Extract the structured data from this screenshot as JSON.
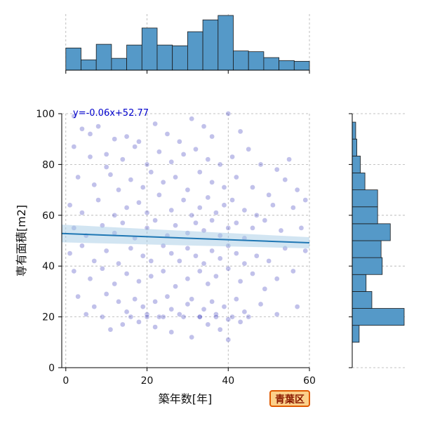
{
  "badge": {
    "label": "青葉区"
  },
  "colors": {
    "bar": "#5599c8",
    "point": "#3333bb",
    "regression": "#1f77b4",
    "band": "#a6cbe6",
    "equation": "#0000cc"
  },
  "chart_data": {
    "type": "scatter",
    "xlabel": "築年数[年]",
    "ylabel": "専有面積[m2]",
    "xlim": [
      -1,
      60
    ],
    "ylim": [
      0,
      100
    ],
    "x_ticks": [
      0,
      20,
      40,
      60
    ],
    "y_ticks": [
      0,
      20,
      40,
      60,
      80,
      100
    ],
    "grid": true,
    "regression": {
      "equation": "y=-0.06x+52.77",
      "slope": -0.06,
      "intercept": 52.77
    },
    "x_histogram": {
      "bin_edges": [
        0,
        3.75,
        7.5,
        11.25,
        15,
        18.75,
        22.5,
        26.25,
        30,
        33.75,
        37.5,
        41.25,
        45,
        48.75,
        52.5,
        56.25,
        60
      ],
      "counts": [
        30,
        14,
        35,
        16,
        34,
        57,
        34,
        33,
        52,
        68,
        74,
        26,
        25,
        17,
        13,
        12
      ]
    },
    "y_histogram": {
      "bin_edges": [
        10,
        16.67,
        23.33,
        30,
        36.67,
        43.33,
        50,
        56.67,
        63.33,
        70,
        76.67,
        83.33,
        90,
        96.67,
        100
      ],
      "counts": [
        6,
        45,
        17,
        12,
        26,
        25,
        33,
        22,
        22,
        11,
        7,
        4,
        3,
        0
      ]
    },
    "points": [
      [
        2,
        99
      ],
      [
        4,
        94
      ],
      [
        6,
        92
      ],
      [
        8,
        95
      ],
      [
        10,
        84
      ],
      [
        12,
        90
      ],
      [
        15,
        91
      ],
      [
        18,
        89
      ],
      [
        22,
        96
      ],
      [
        25,
        92
      ],
      [
        28,
        89
      ],
      [
        31,
        98
      ],
      [
        34,
        95
      ],
      [
        36,
        91
      ],
      [
        40,
        100
      ],
      [
        43,
        93
      ],
      [
        2,
        87
      ],
      [
        6,
        83
      ],
      [
        10,
        79
      ],
      [
        14,
        82
      ],
      [
        17,
        87
      ],
      [
        20,
        80
      ],
      [
        23,
        85
      ],
      [
        26,
        81
      ],
      [
        29,
        84
      ],
      [
        32,
        86
      ],
      [
        35,
        82
      ],
      [
        38,
        80
      ],
      [
        41,
        83
      ],
      [
        45,
        86
      ],
      [
        48,
        80
      ],
      [
        52,
        78
      ],
      [
        55,
        82
      ],
      [
        3,
        75
      ],
      [
        7,
        72
      ],
      [
        11,
        76
      ],
      [
        13,
        70
      ],
      [
        16,
        74
      ],
      [
        19,
        71
      ],
      [
        21,
        77
      ],
      [
        24,
        73
      ],
      [
        27,
        75
      ],
      [
        30,
        70
      ],
      [
        33,
        77
      ],
      [
        36,
        73
      ],
      [
        39,
        71
      ],
      [
        42,
        75
      ],
      [
        46,
        71
      ],
      [
        50,
        68
      ],
      [
        54,
        74
      ],
      [
        57,
        70
      ],
      [
        1,
        64
      ],
      [
        4,
        61
      ],
      [
        8,
        66
      ],
      [
        12,
        60
      ],
      [
        15,
        63
      ],
      [
        18,
        65
      ],
      [
        20,
        61
      ],
      [
        23,
        68
      ],
      [
        26,
        62
      ],
      [
        29,
        66
      ],
      [
        31,
        60
      ],
      [
        33,
        63
      ],
      [
        35,
        67
      ],
      [
        37,
        61
      ],
      [
        39,
        64
      ],
      [
        41,
        66
      ],
      [
        44,
        62
      ],
      [
        47,
        60
      ],
      [
        51,
        64
      ],
      [
        56,
        63
      ],
      [
        59,
        66
      ],
      [
        2,
        55
      ],
      [
        5,
        52
      ],
      [
        9,
        56
      ],
      [
        12,
        53
      ],
      [
        14,
        57
      ],
      [
        17,
        51
      ],
      [
        20,
        55
      ],
      [
        22,
        58
      ],
      [
        25,
        52
      ],
      [
        27,
        56
      ],
      [
        30,
        53
      ],
      [
        32,
        57
      ],
      [
        34,
        54
      ],
      [
        36,
        58
      ],
      [
        38,
        52
      ],
      [
        40,
        55
      ],
      [
        42,
        57
      ],
      [
        44,
        51
      ],
      [
        46,
        55
      ],
      [
        49,
        58
      ],
      [
        53,
        54
      ],
      [
        58,
        55
      ],
      [
        1,
        45
      ],
      [
        4,
        48
      ],
      [
        7,
        42
      ],
      [
        10,
        46
      ],
      [
        13,
        41
      ],
      [
        16,
        47
      ],
      [
        19,
        44
      ],
      [
        21,
        42
      ],
      [
        24,
        48
      ],
      [
        26,
        45
      ],
      [
        28,
        42
      ],
      [
        30,
        47
      ],
      [
        32,
        44
      ],
      [
        34,
        41
      ],
      [
        36,
        46
      ],
      [
        38,
        43
      ],
      [
        40,
        48
      ],
      [
        42,
        45
      ],
      [
        44,
        41
      ],
      [
        47,
        44
      ],
      [
        50,
        42
      ],
      [
        54,
        47
      ],
      [
        59,
        46
      ],
      [
        2,
        38
      ],
      [
        6,
        35
      ],
      [
        9,
        39
      ],
      [
        12,
        33
      ],
      [
        15,
        37
      ],
      [
        18,
        34
      ],
      [
        21,
        36
      ],
      [
        24,
        38
      ],
      [
        27,
        32
      ],
      [
        30,
        35
      ],
      [
        33,
        38
      ],
      [
        35,
        33
      ],
      [
        37,
        36
      ],
      [
        40,
        39
      ],
      [
        43,
        34
      ],
      [
        46,
        37
      ],
      [
        49,
        31
      ],
      [
        52,
        35
      ],
      [
        56,
        38
      ],
      [
        3,
        28
      ],
      [
        7,
        24
      ],
      [
        10,
        29
      ],
      [
        13,
        26
      ],
      [
        15,
        22
      ],
      [
        17,
        27
      ],
      [
        19,
        24
      ],
      [
        20,
        21
      ],
      [
        22,
        26
      ],
      [
        23,
        20
      ],
      [
        25,
        28
      ],
      [
        26,
        23
      ],
      [
        28,
        21
      ],
      [
        30,
        25
      ],
      [
        31,
        27
      ],
      [
        33,
        20
      ],
      [
        34,
        23
      ],
      [
        36,
        26
      ],
      [
        37,
        21
      ],
      [
        39,
        24
      ],
      [
        40,
        19
      ],
      [
        42,
        27
      ],
      [
        44,
        22
      ],
      [
        48,
        25
      ],
      [
        52,
        21
      ],
      [
        57,
        24
      ],
      [
        11,
        15
      ],
      [
        14,
        17
      ],
      [
        18,
        18
      ],
      [
        22,
        16
      ],
      [
        26,
        14
      ],
      [
        31,
        12
      ],
      [
        35,
        17
      ],
      [
        38,
        15
      ],
      [
        40,
        11
      ],
      [
        43,
        18
      ],
      [
        5,
        21
      ],
      [
        9,
        20
      ],
      [
        16,
        20
      ],
      [
        20,
        20
      ],
      [
        24,
        20
      ],
      [
        29,
        20
      ],
      [
        33,
        20
      ],
      [
        37,
        20
      ],
      [
        41,
        20
      ],
      [
        45,
        20
      ]
    ]
  }
}
